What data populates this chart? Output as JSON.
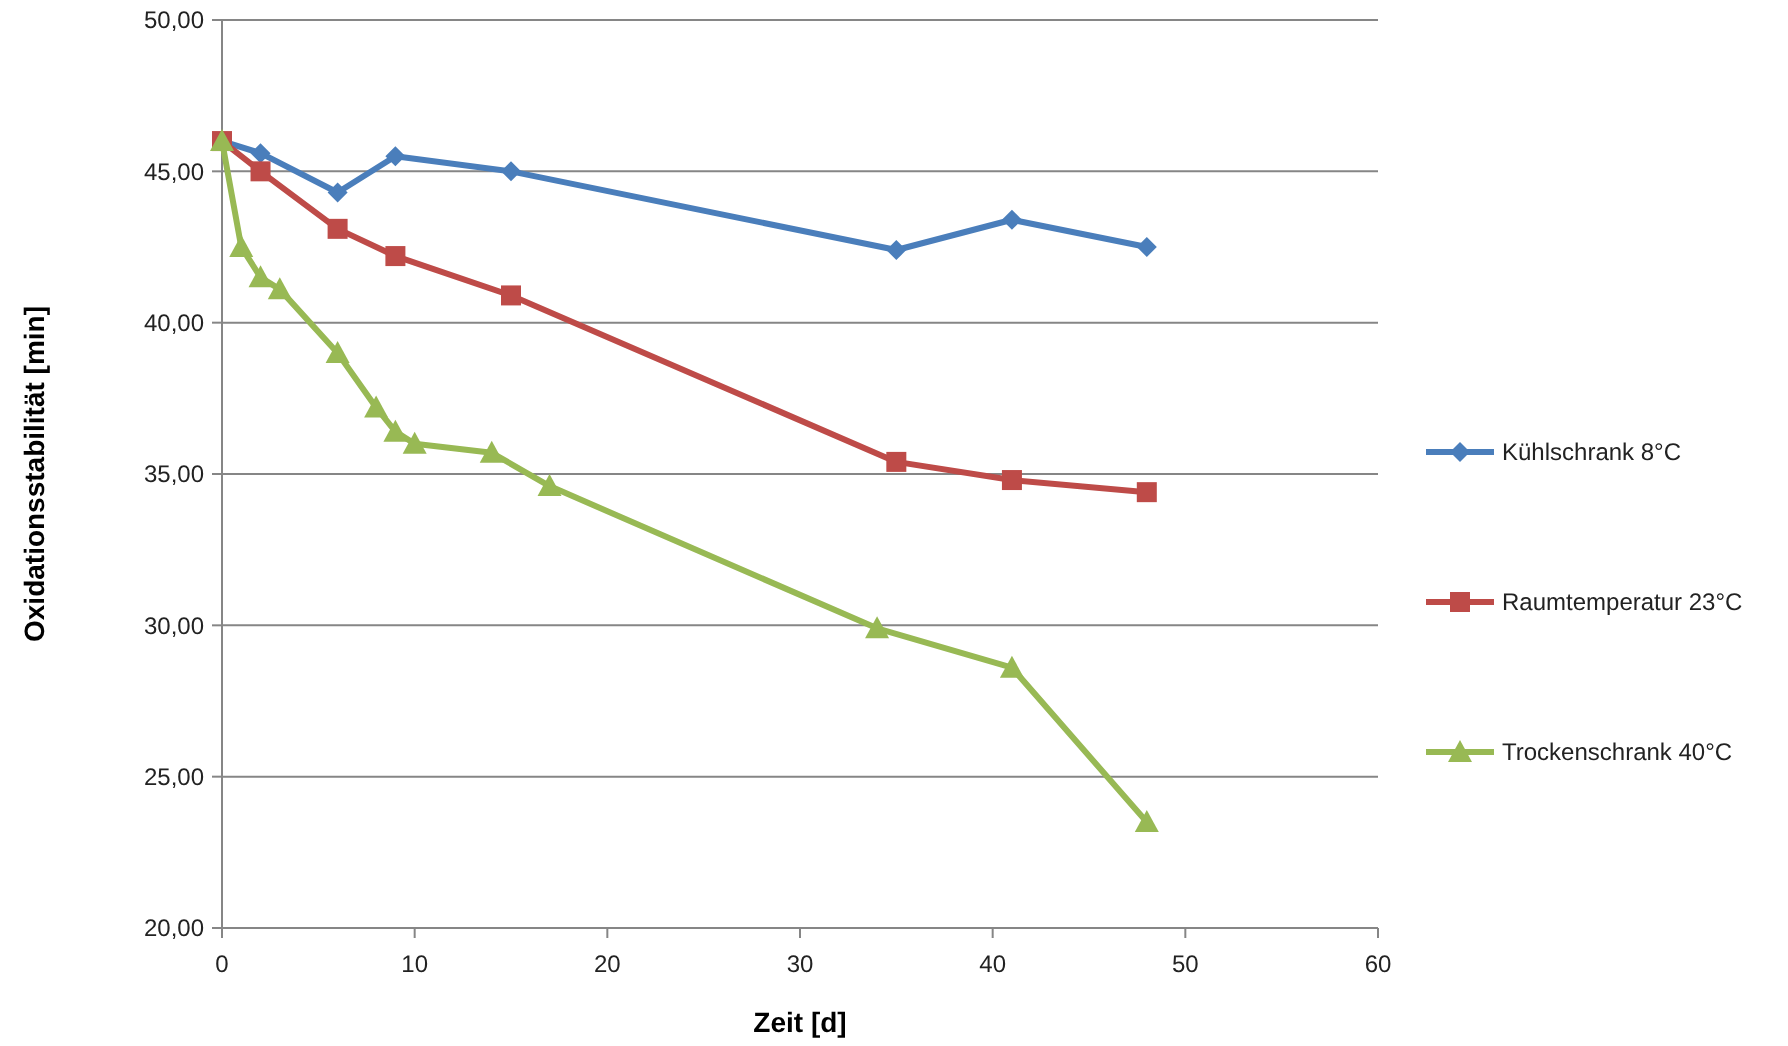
{
  "chart_data": {
    "type": "line",
    "xlabel": "Zeit [d]",
    "ylabel": "Oxidationsstabilität [min]",
    "xlim": [
      0,
      60
    ],
    "xticks": [
      0,
      10,
      20,
      30,
      40,
      50,
      60
    ],
    "ylim": [
      20,
      50
    ],
    "yticks": [
      {
        "value": 20,
        "label": "20,00"
      },
      {
        "value": 25,
        "label": "25,00"
      },
      {
        "value": 30,
        "label": "30,00"
      },
      {
        "value": 35,
        "label": "35,00"
      },
      {
        "value": 40,
        "label": "40,00"
      },
      {
        "value": 45,
        "label": "45,00"
      },
      {
        "value": 50,
        "label": "50,00"
      }
    ],
    "grid": "y",
    "legend": "right",
    "series": [
      {
        "name": "Kühlschrank 8°C",
        "color": "#4a7ebb",
        "marker": "diamond",
        "x": [
          0,
          2,
          6,
          9,
          15,
          35,
          41,
          48
        ],
        "values": [
          46.0,
          45.6,
          44.3,
          45.5,
          45.0,
          42.4,
          43.4,
          42.5
        ]
      },
      {
        "name": "Raumtemperatur 23°C",
        "color": "#be4b48",
        "marker": "square",
        "x": [
          0,
          2,
          6,
          9,
          15,
          35,
          41,
          48
        ],
        "values": [
          46.0,
          45.0,
          43.1,
          42.2,
          40.9,
          35.4,
          34.8,
          34.4
        ]
      },
      {
        "name": "Trockenschrank 40°C",
        "color": "#98b954",
        "marker": "triangle",
        "x": [
          0,
          1,
          2,
          3,
          6,
          8,
          9,
          10,
          14,
          17,
          34,
          41,
          48
        ],
        "values": [
          46.0,
          42.5,
          41.5,
          41.1,
          39.0,
          37.2,
          36.4,
          36.0,
          35.7,
          34.6,
          29.9,
          28.6,
          23.5
        ]
      }
    ]
  }
}
